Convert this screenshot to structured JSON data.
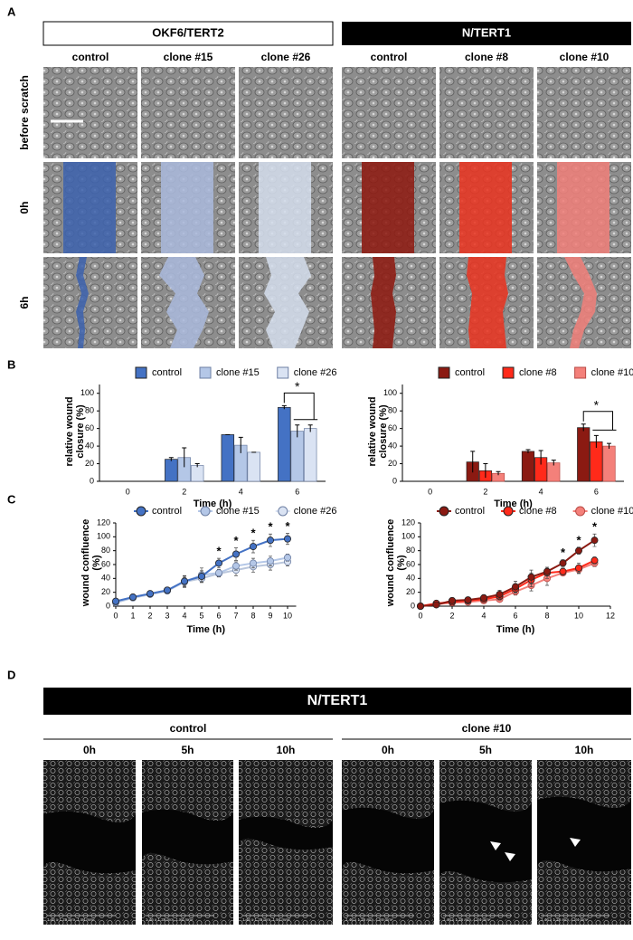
{
  "panel_labels": [
    "A",
    "B",
    "C",
    "D"
  ],
  "panel_a": {
    "groups": [
      "OKF6/TERT2",
      "N/TERT1"
    ],
    "columns": [
      "control",
      "clone #15",
      "clone #26",
      "control",
      "clone #8",
      "clone #10"
    ],
    "rows": [
      "before scratch",
      "0h",
      "6h"
    ]
  },
  "chart_data": [
    {
      "type": "bar",
      "categories": [
        "0",
        "2",
        "4",
        "6"
      ],
      "x_label": "Time (h)",
      "y_label": "relative wound closure (%)",
      "ylim": [
        0,
        110
      ],
      "yticks": [
        0,
        20,
        40,
        60,
        80,
        100
      ],
      "series": [
        {
          "name": "control",
          "color": "#4472c4",
          "values": [
            0,
            25,
            53,
            84
          ],
          "errors": [
            0,
            2,
            0,
            2
          ]
        },
        {
          "name": "clone #15",
          "color": "#b4c7e7",
          "values": [
            0,
            27,
            41,
            57
          ],
          "errors": [
            0,
            11,
            9,
            7
          ]
        },
        {
          "name": "clone #26",
          "color": "#dae3f3",
          "values": [
            0,
            18,
            33,
            60
          ],
          "errors": [
            0,
            2,
            0,
            4
          ]
        }
      ],
      "annotations": [
        {
          "text": "*"
        }
      ]
    },
    {
      "type": "bar",
      "categories": [
        "0",
        "2",
        "4",
        "6"
      ],
      "x_label": "Time (h)",
      "y_label": "relative wound closure (%)",
      "ylim": [
        0,
        110
      ],
      "yticks": [
        0,
        20,
        40,
        60,
        80,
        100
      ],
      "series": [
        {
          "name": "control",
          "color": "#8b1a12",
          "values": [
            0,
            22,
            34,
            61
          ],
          "errors": [
            0,
            12,
            2,
            4
          ]
        },
        {
          "name": "clone #8",
          "color": "#ff2a1a",
          "values": [
            0,
            12,
            27,
            45
          ],
          "errors": [
            0,
            8,
            8,
            7
          ]
        },
        {
          "name": "clone #10",
          "color": "#f4807a",
          "values": [
            0,
            9,
            21,
            40
          ],
          "errors": [
            0,
            2,
            3,
            3
          ]
        }
      ],
      "annotations": [
        {
          "text": "*"
        }
      ]
    },
    {
      "type": "line",
      "x": [
        0,
        1,
        2,
        3,
        4,
        5,
        6,
        7,
        8,
        9,
        10
      ],
      "x_label": "Time (h)",
      "y_label": "wound confluence (%)",
      "xlim": [
        0,
        10.5
      ],
      "xticks": [
        0,
        1,
        2,
        3,
        4,
        5,
        6,
        7,
        8,
        9,
        10
      ],
      "ylim": [
        0,
        120
      ],
      "yticks": [
        0,
        20,
        40,
        60,
        80,
        100,
        120
      ],
      "series": [
        {
          "name": "control",
          "color": "#4472c4",
          "values": [
            7,
            13,
            18,
            23,
            36,
            43,
            62,
            75,
            86,
            95,
            97
          ],
          "errors": [
            4,
            3,
            4,
            4,
            8,
            8,
            7,
            9,
            9,
            9,
            8
          ]
        },
        {
          "name": "clone #15",
          "color": "#b4c7e7",
          "values": [
            6,
            13,
            18,
            23,
            35,
            45,
            48,
            58,
            62,
            65,
            70
          ],
          "errors": [
            3,
            3,
            3,
            4,
            8,
            10,
            5,
            6,
            7,
            7,
            5
          ]
        },
        {
          "name": "clone #26",
          "color": "#dae3f3",
          "values": [
            5,
            12,
            17,
            22,
            35,
            40,
            47,
            52,
            57,
            60,
            64
          ],
          "errors": [
            3,
            3,
            3,
            3,
            6,
            6,
            5,
            8,
            8,
            8,
            6
          ]
        }
      ],
      "annotations": [
        {
          "text": "*",
          "x": 6
        },
        {
          "text": "*",
          "x": 7
        },
        {
          "text": "*",
          "x": 8
        },
        {
          "text": "*",
          "x": 9
        },
        {
          "text": "*",
          "x": 10
        }
      ]
    },
    {
      "type": "line",
      "x": [
        0,
        1,
        2,
        3,
        4,
        5,
        6,
        7,
        8,
        9,
        10,
        11
      ],
      "x_label": "Time (h)",
      "y_label": "wound confluence (%)",
      "xlim": [
        0,
        12
      ],
      "xticks": [
        0,
        2,
        4,
        6,
        8,
        10,
        12
      ],
      "ylim": [
        0,
        120
      ],
      "yticks": [
        0,
        20,
        40,
        60,
        80,
        100,
        120
      ],
      "series": [
        {
          "name": "control",
          "color": "#8b1a12",
          "values": [
            0,
            2,
            8,
            9,
            12,
            17,
            28,
            42,
            50,
            62,
            80,
            95
          ],
          "errors": [
            1,
            3,
            4,
            4,
            4,
            6,
            8,
            10,
            6,
            5,
            5,
            9
          ]
        },
        {
          "name": "clone #8",
          "color": "#ff2a1a",
          "values": [
            0,
            4,
            6,
            8,
            10,
            14,
            25,
            38,
            48,
            50,
            55,
            66
          ],
          "errors": [
            1,
            3,
            3,
            3,
            3,
            5,
            6,
            10,
            8,
            5,
            7,
            5
          ]
        },
        {
          "name": "clone #10",
          "color": "#f4807a",
          "values": [
            0,
            3,
            5,
            6,
            8,
            10,
            21,
            30,
            40,
            48,
            53,
            62
          ],
          "errors": [
            1,
            2,
            2,
            2,
            3,
            3,
            5,
            8,
            10,
            4,
            6,
            5
          ]
        }
      ],
      "annotations": [
        {
          "text": "*",
          "x": 9
        },
        {
          "text": "*",
          "x": 10
        },
        {
          "text": "*",
          "x": 11
        }
      ]
    }
  ],
  "panel_d": {
    "title": "N/TERT1",
    "groups": [
      "control",
      "clone #10"
    ],
    "times": [
      "0h",
      "5h",
      "10h"
    ],
    "scale_text": "1.46 x 1.26 mm, 1.84 mm²"
  }
}
